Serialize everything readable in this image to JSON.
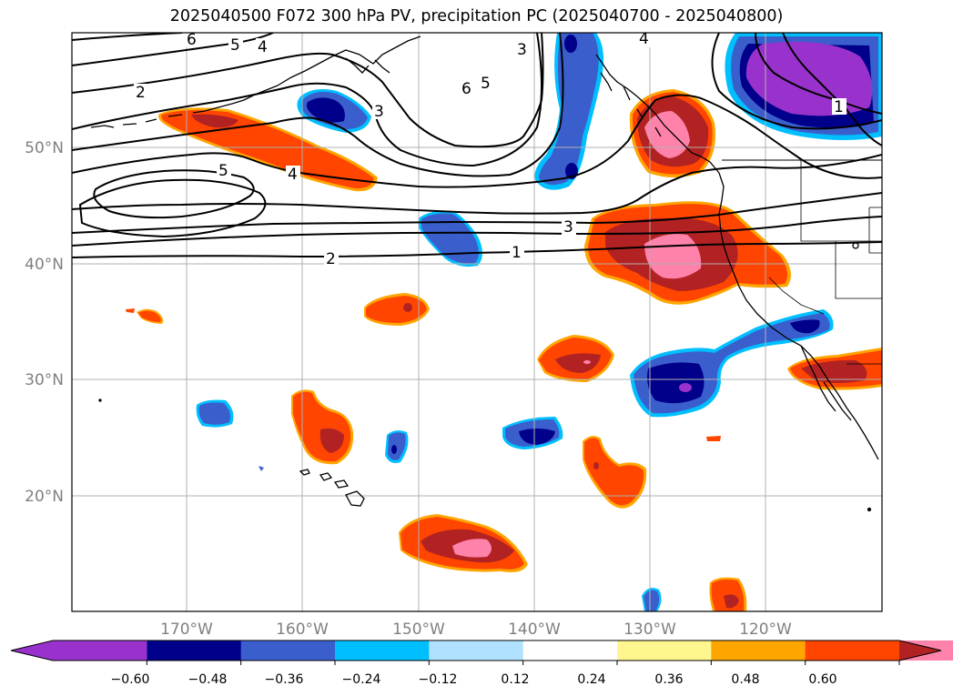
{
  "title": "2025040500 F072 300 hPa PV, precipitation PC (2025040700 - 2025040800)",
  "map": {
    "lon_range": [
      -180,
      -110
    ],
    "lat_range": [
      10,
      60
    ],
    "lat_ticks": [
      "50°N",
      "40°N",
      "30°N",
      "20°N"
    ],
    "lon_ticks": [
      "170°W",
      "160°W",
      "150°W",
      "140°W",
      "130°W",
      "120°W"
    ],
    "contour_labels": [
      "6",
      "5",
      "4",
      "2",
      "5",
      "4",
      "3",
      "3",
      "6",
      "5",
      "4",
      "3",
      "2",
      "1",
      "1"
    ]
  },
  "colorbar": {
    "colors": [
      "#9932cc",
      "#00008b",
      "#3a5fcd",
      "#00bfff",
      "#b0e2ff",
      "#ffffff",
      "#fff68f",
      "#ffa500",
      "#ff4500",
      "#b22222",
      "#ff82ab"
    ],
    "tick_labels": [
      "−0.60",
      "−0.48",
      "−0.36",
      "−0.24",
      "−0.12",
      "0.12",
      "0.24",
      "0.36",
      "0.48",
      "0.60"
    ]
  }
}
